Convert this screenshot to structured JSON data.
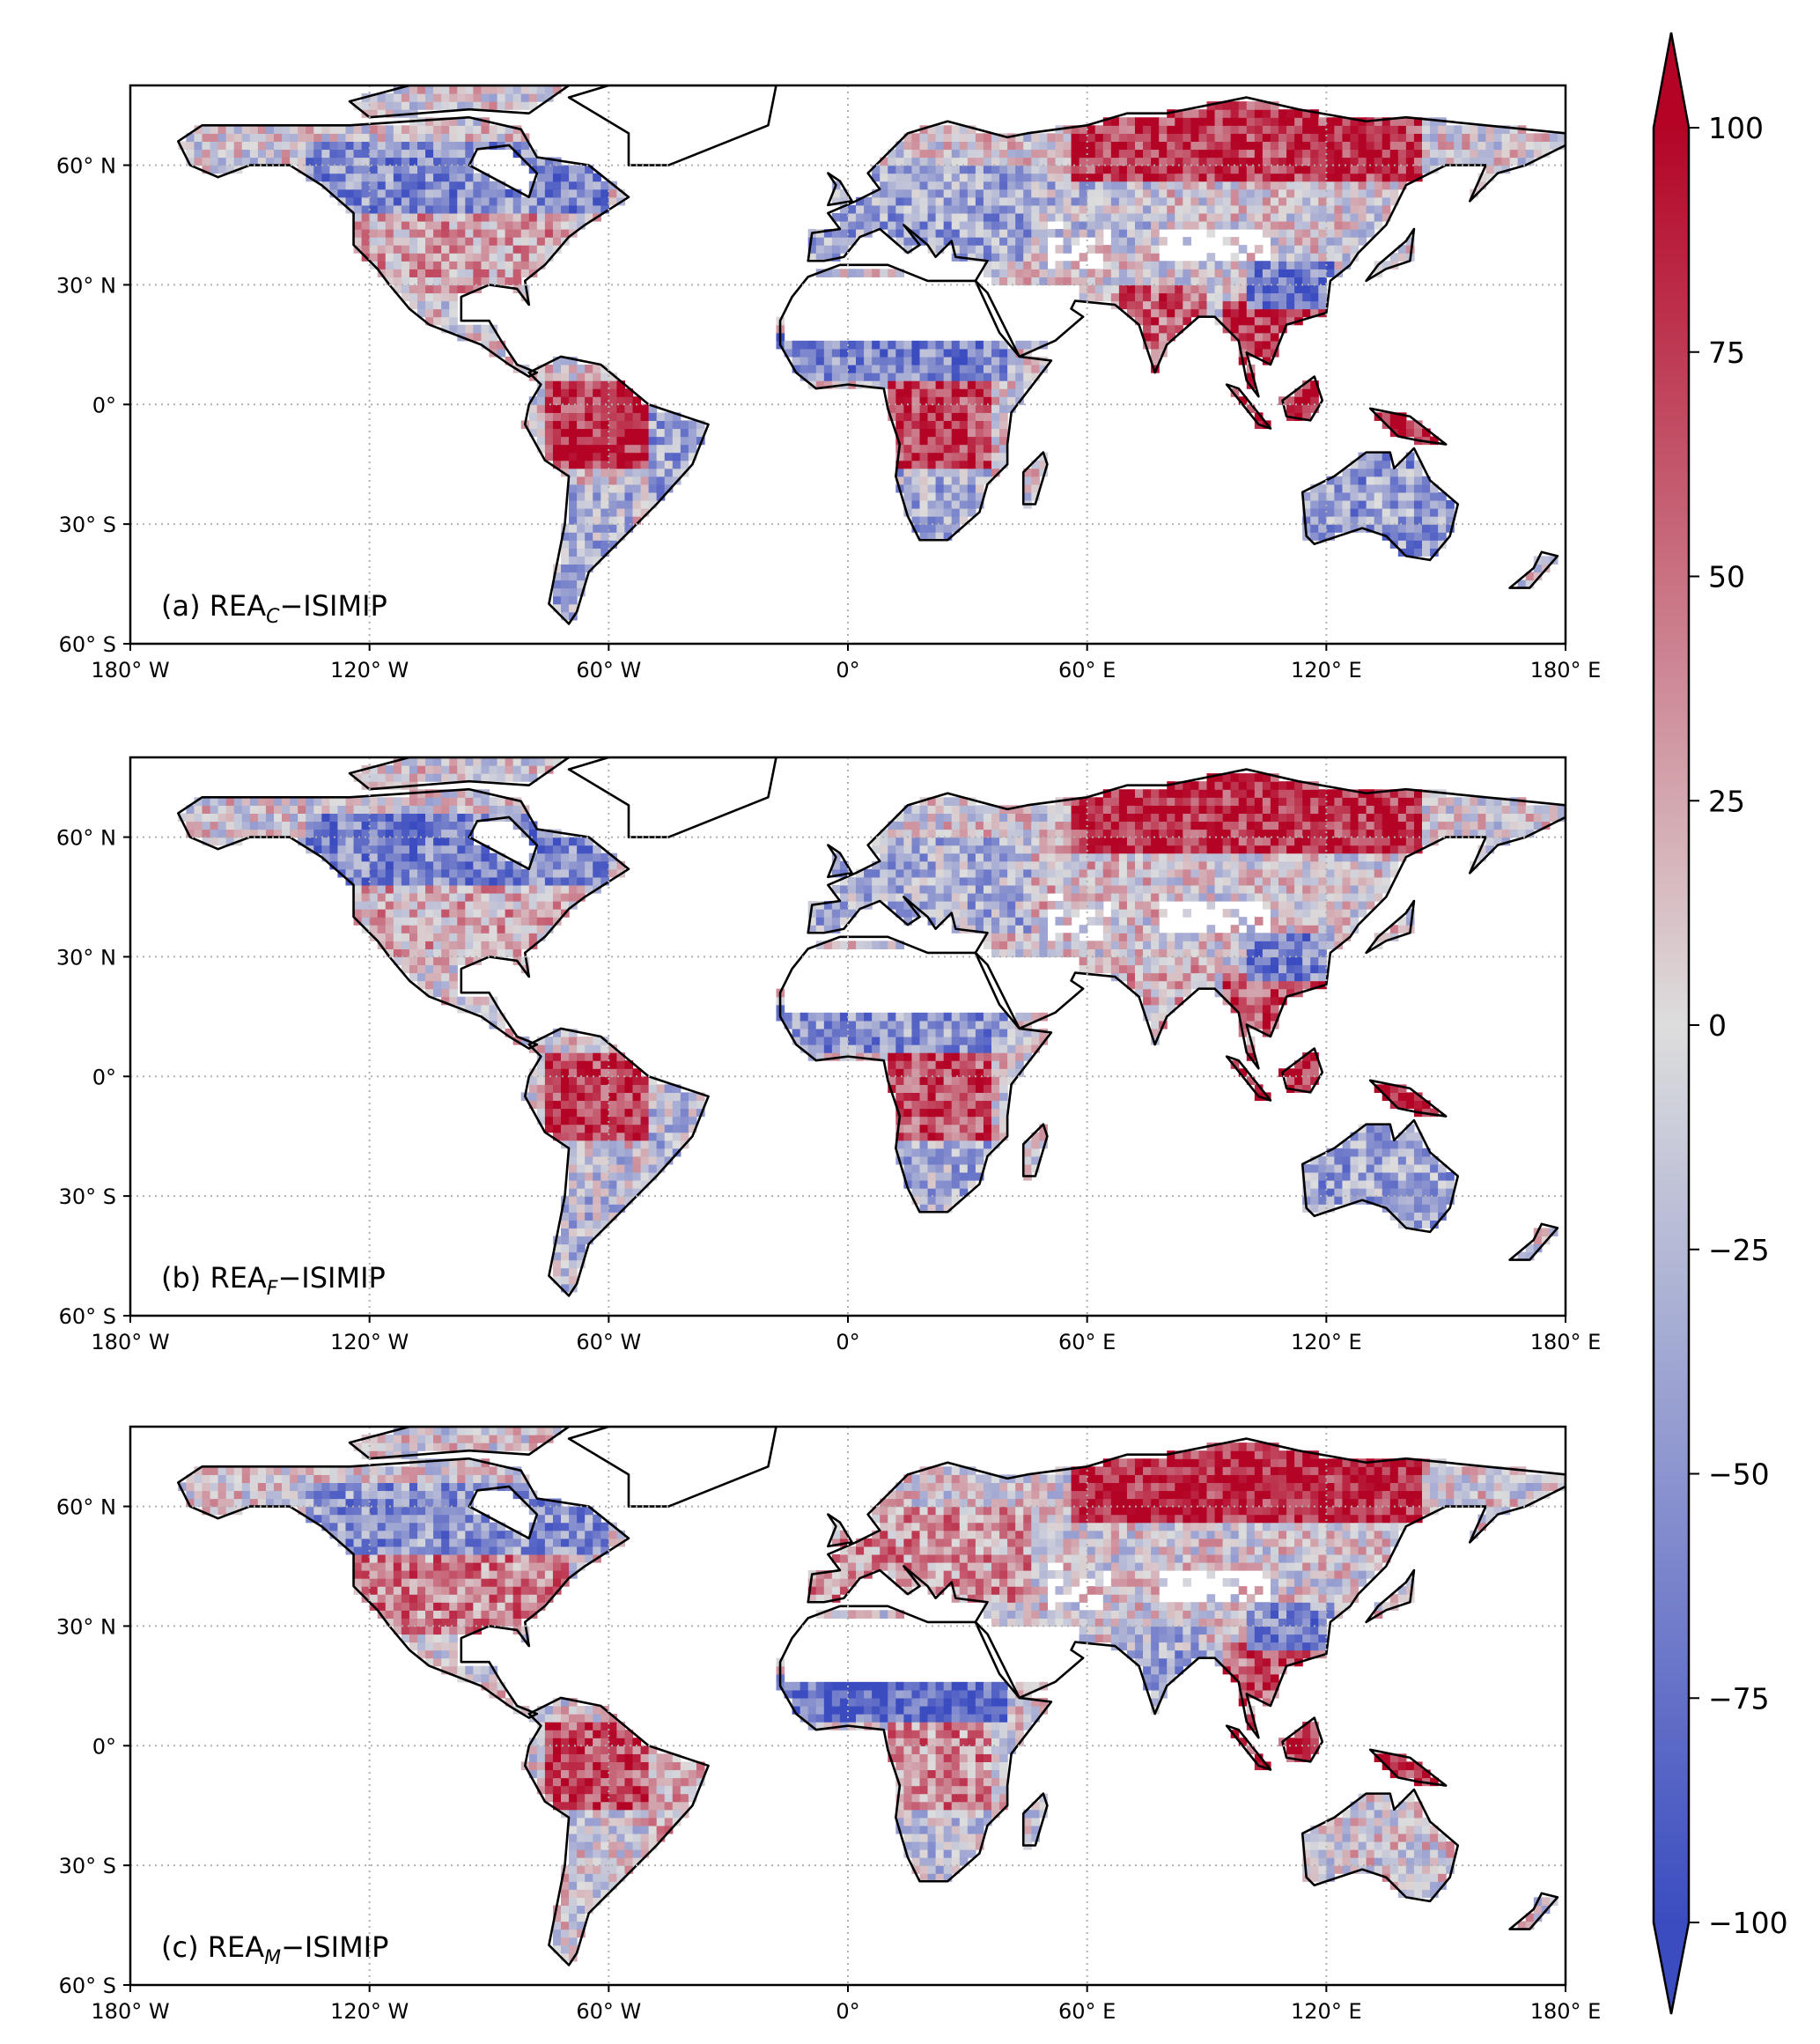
{
  "chart_data": {
    "type": "heatmap",
    "projection": "PlateCarree",
    "xlim": [
      -180,
      180
    ],
    "ylim": [
      -60,
      80
    ],
    "xticks": [
      -180,
      -120,
      -60,
      0,
      60,
      120,
      180
    ],
    "xtick_labels": [
      "180° W",
      "120° W",
      "60° W",
      "0°",
      "60° E",
      "120° E",
      "180° E"
    ],
    "yticks": [
      -60,
      -30,
      0,
      30,
      60
    ],
    "ytick_labels": [
      "60° S",
      "30° S",
      "0°",
      "30° N",
      "60° N"
    ],
    "grid": true,
    "panels": [
      {
        "prefix": "(a) REA",
        "sub": "C",
        "suffix": "−ISIMIP",
        "variant": 0
      },
      {
        "prefix": "(b) REA",
        "sub": "F",
        "suffix": "−ISIMIP",
        "variant": 1
      },
      {
        "prefix": "(c) REA",
        "sub": "M",
        "suffix": "−ISIMIP",
        "variant": 2
      }
    ],
    "colorbar": {
      "cmap": "coolwarm",
      "vmin": -100,
      "vmax": 100,
      "extend": "both",
      "ticks": [
        100,
        75,
        50,
        25,
        0,
        -25,
        -50,
        -75,
        -100
      ],
      "tick_labels": [
        "100",
        "75",
        "50",
        "25",
        "0",
        "−25",
        "−50",
        "−75",
        "−100"
      ],
      "colors": {
        "low": "#3b4cc0",
        "mid": "#dddddd",
        "high": "#b40426"
      }
    }
  }
}
